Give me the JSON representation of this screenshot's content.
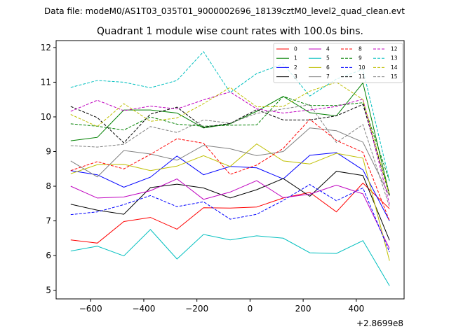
{
  "chart_data": {
    "type": "line",
    "suptitle": "Data file: modeM0/AS1T03_035T01_9000002696_18139cztM0_level2_quad_clean.evt",
    "title": "Quadrant 1 module wise count rates with 100.0s bins.",
    "xlabel": "",
    "ylabel": "",
    "x_offset_label": "+2.8699e8",
    "xlim": [
      -730,
      580
    ],
    "ylim": [
      4.75,
      12.2
    ],
    "x_ticks": [
      -600,
      -400,
      -200,
      0,
      200,
      400
    ],
    "x_tick_labels": [
      "−600",
      "−400",
      "−200",
      "0",
      "200",
      "400"
    ],
    "y_ticks": [
      5,
      6,
      7,
      8,
      9,
      10,
      11,
      12
    ],
    "y_tick_labels": [
      "5",
      "6",
      "7",
      "8",
      "9",
      "10",
      "11",
      "12"
    ],
    "x": [
      -675,
      -575,
      -475,
      -375,
      -275,
      -175,
      -75,
      25,
      125,
      225,
      325,
      425,
      525
    ],
    "legend_position": "top-right",
    "series": [
      {
        "name": "0",
        "color": "#ff0000",
        "dash": "solid",
        "values": [
          6.45,
          6.36,
          6.98,
          7.1,
          6.76,
          7.38,
          7.37,
          7.4,
          7.66,
          7.82,
          7.26,
          8.09,
          7.35
        ]
      },
      {
        "name": "1",
        "color": "#008000",
        "dash": "solid",
        "values": [
          9.31,
          9.41,
          10.2,
          10.2,
          10.11,
          9.68,
          9.8,
          10.16,
          10.59,
          10.12,
          10.03,
          10.98,
          7.75
        ]
      },
      {
        "name": "2",
        "color": "#0000ff",
        "dash": "solid",
        "values": [
          8.45,
          8.33,
          7.97,
          8.26,
          8.87,
          8.33,
          8.57,
          8.53,
          8.21,
          8.89,
          8.97,
          8.47,
          7.0
        ]
      },
      {
        "name": "3",
        "color": "#000000",
        "dash": "solid",
        "values": [
          7.48,
          7.31,
          7.19,
          7.96,
          8.06,
          7.95,
          7.66,
          7.9,
          8.22,
          7.71,
          8.43,
          8.31,
          6.44
        ]
      },
      {
        "name": "4",
        "color": "#bf00bf",
        "dash": "solid",
        "values": [
          8.0,
          7.66,
          7.69,
          7.87,
          8.21,
          7.62,
          7.83,
          8.16,
          7.67,
          7.77,
          8.03,
          7.78,
          6.2
        ]
      },
      {
        "name": "5",
        "color": "#00bfbf",
        "dash": "solid",
        "values": [
          6.13,
          6.27,
          5.99,
          6.75,
          5.9,
          6.61,
          6.45,
          6.57,
          6.5,
          6.08,
          6.06,
          6.43,
          5.13
        ]
      },
      {
        "name": "6",
        "color": "#bfbf00",
        "dash": "solid",
        "values": [
          8.36,
          8.62,
          8.63,
          8.45,
          8.58,
          8.88,
          8.57,
          9.22,
          8.73,
          8.64,
          8.95,
          8.81,
          5.85
        ]
      },
      {
        "name": "7",
        "color": "#808080",
        "dash": "solid",
        "values": [
          8.73,
          8.27,
          9.03,
          8.93,
          8.75,
          9.18,
          9.08,
          8.88,
          9.0,
          9.68,
          9.6,
          9.27,
          7.72
        ]
      },
      {
        "name": "8",
        "color": "#ff0000",
        "dash": "dashed",
        "values": [
          8.45,
          8.71,
          8.5,
          8.92,
          9.37,
          9.24,
          8.34,
          8.61,
          9.09,
          9.93,
          9.32,
          8.98,
          7.0
        ]
      },
      {
        "name": "9",
        "color": "#008000",
        "dash": "dashed",
        "values": [
          9.8,
          9.73,
          9.62,
          10.0,
          9.79,
          9.73,
          9.76,
          9.77,
          10.59,
          10.33,
          10.33,
          10.41,
          8.15
        ]
      },
      {
        "name": "10",
        "color": "#0000ff",
        "dash": "dashed",
        "values": [
          7.18,
          7.26,
          7.47,
          7.73,
          7.41,
          7.55,
          7.05,
          7.19,
          7.59,
          8.05,
          7.58,
          7.95,
          6.1
        ]
      },
      {
        "name": "11",
        "color": "#000000",
        "dash": "dashed",
        "values": [
          10.3,
          9.98,
          9.25,
          10.08,
          10.28,
          9.7,
          9.81,
          10.21,
          9.91,
          9.91,
          10.03,
          10.36,
          7.75
        ]
      },
      {
        "name": "12",
        "color": "#bf00bf",
        "dash": "dashed",
        "values": [
          10.16,
          10.48,
          10.18,
          10.31,
          10.23,
          10.49,
          10.72,
          10.23,
          10.11,
          10.2,
          10.3,
          10.51,
          7.48
        ]
      },
      {
        "name": "13",
        "color": "#00bfbf",
        "dash": "dashed",
        "values": [
          10.85,
          11.05,
          11.0,
          10.84,
          11.05,
          11.88,
          10.7,
          11.25,
          11.53,
          10.6,
          11.09,
          11.37,
          8.15
        ]
      },
      {
        "name": "14",
        "color": "#bfbf00",
        "dash": "dashed",
        "values": [
          10.07,
          9.72,
          10.38,
          9.87,
          9.97,
          10.38,
          10.85,
          10.29,
          10.3,
          10.74,
          11.0,
          10.5,
          7.75
        ]
      },
      {
        "name": "15",
        "color": "#808080",
        "dash": "dashed",
        "values": [
          9.17,
          9.13,
          9.21,
          9.72,
          9.55,
          9.91,
          9.82,
          10.1,
          10.23,
          10.35,
          9.26,
          9.78,
          7.4
        ]
      }
    ]
  }
}
